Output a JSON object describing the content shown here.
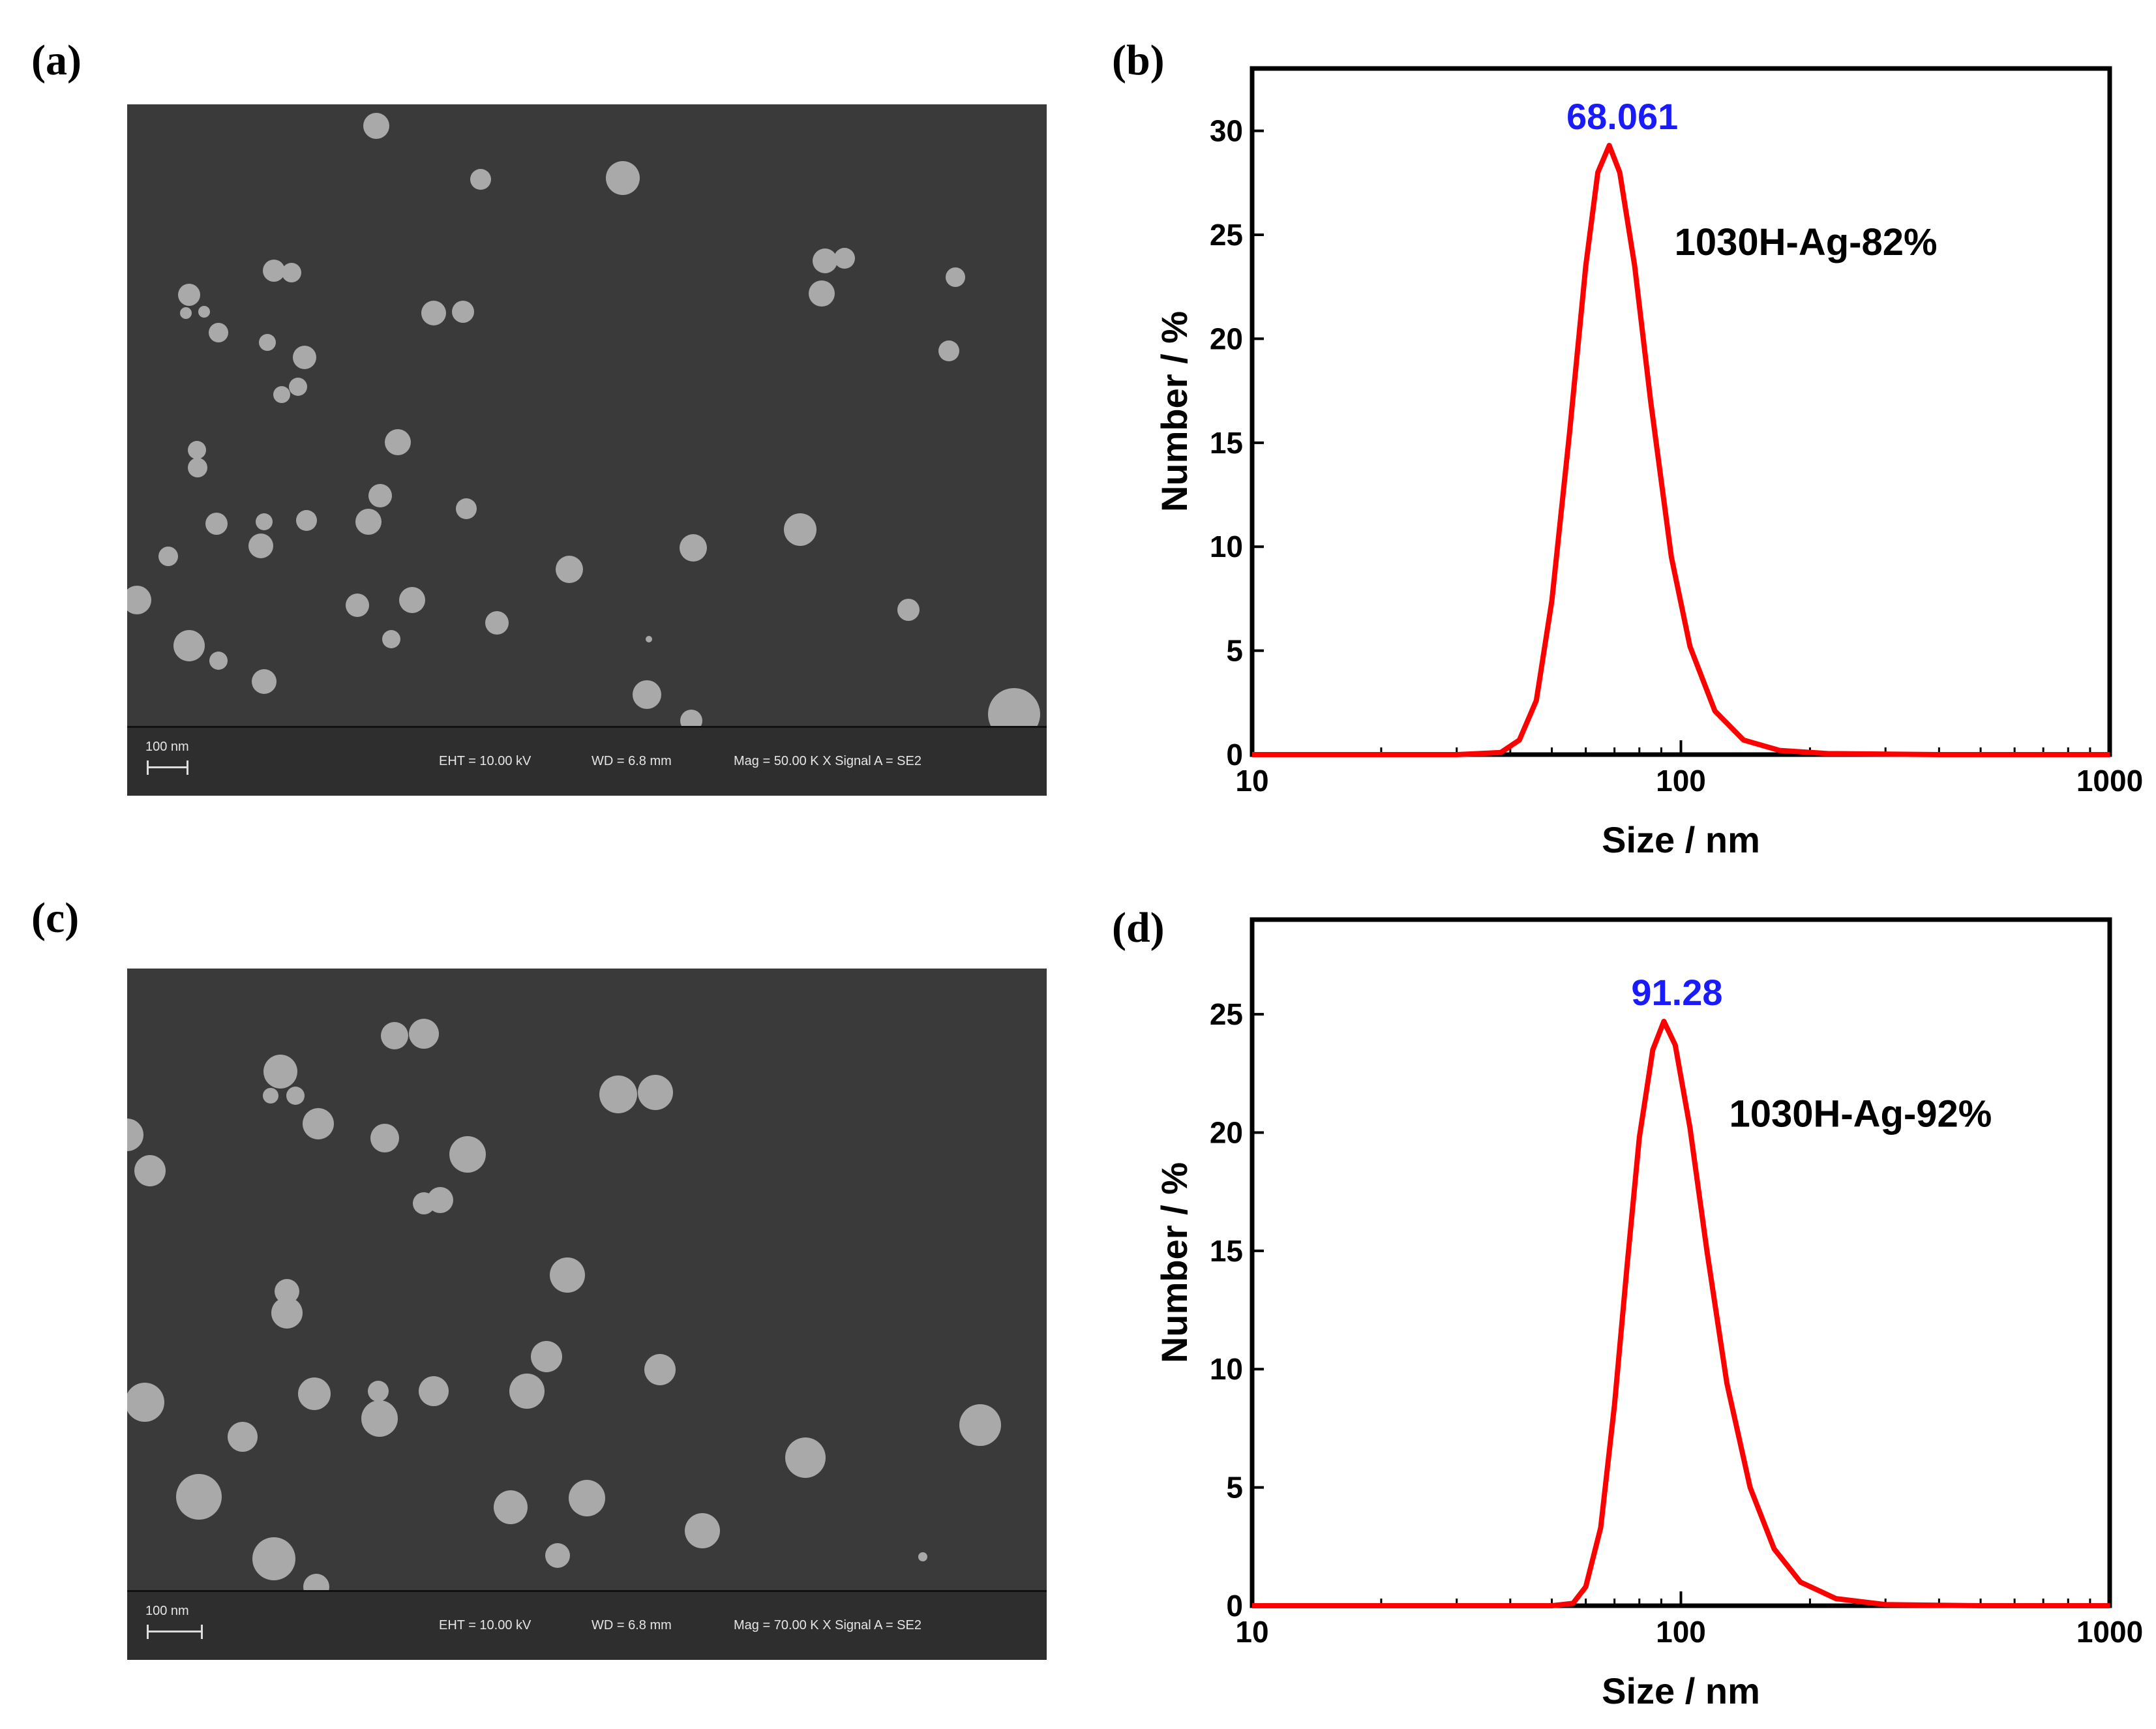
{
  "panels": {
    "a": {
      "label": "(a)",
      "scale_text": "100 nm",
      "eht": "EHT = 10.00 kV",
      "wd": "WD =  6.8 mm",
      "mag": "Mag =   50.00 K X Signal A = SE2"
    },
    "b": {
      "label": "(b)"
    },
    "c": {
      "label": "(c)",
      "scale_text": "100 nm",
      "eht": "EHT = 10.00 kV",
      "wd": "WD =  6.8 mm",
      "mag": "Mag =   70.00 K X Signal A = SE2"
    },
    "d": {
      "label": "(d)"
    }
  },
  "chart_data": [
    {
      "panel": "b",
      "type": "line",
      "xscale": "log",
      "xlim": [
        10,
        1000
      ],
      "ylim": [
        0,
        33
      ],
      "xticks": [
        10,
        100,
        1000
      ],
      "xtick_labels": [
        "10",
        "100",
        "1000"
      ],
      "yticks": [
        0,
        5,
        10,
        15,
        20,
        25,
        30
      ],
      "ytick_labels": [
        "0",
        "5",
        "10",
        "15",
        "20",
        "25",
        "30"
      ],
      "xlabel": "Size / nm",
      "ylabel": "Number / %",
      "series_label": "1030H-Ag-82%",
      "peak_label": "68.061",
      "peak_x": 68.061,
      "peak_y": 29.3,
      "x": [
        10,
        30,
        38,
        42,
        46,
        50,
        55,
        60,
        64,
        68.061,
        72,
        78,
        85,
        95,
        105,
        120,
        140,
        170,
        220,
        400,
        1000
      ],
      "y": [
        0,
        0,
        0.1,
        0.7,
        2.6,
        7.4,
        15.5,
        23.5,
        28.0,
        29.3,
        28.0,
        23.5,
        17.0,
        9.5,
        5.2,
        2.1,
        0.7,
        0.2,
        0.05,
        0,
        0
      ],
      "color": "#ff0000",
      "peak_color": "#1a1aff"
    },
    {
      "panel": "d",
      "type": "line",
      "xscale": "log",
      "xlim": [
        10,
        1000
      ],
      "ylim": [
        0,
        29
      ],
      "xticks": [
        10,
        100,
        1000
      ],
      "xtick_labels": [
        "10",
        "100",
        "1000"
      ],
      "yticks": [
        0,
        5,
        10,
        15,
        20,
        25
      ],
      "ytick_labels": [
        "0",
        "5",
        "10",
        "15",
        "20",
        "25"
      ],
      "xlabel": "Size / nm",
      "ylabel": "Number / %",
      "series_label": "1030H-Ag-92%",
      "peak_label": "91.28",
      "peak_x": 91.28,
      "peak_y": 24.7,
      "x": [
        10,
        50,
        56,
        60,
        65,
        70,
        75,
        80,
        86,
        91.28,
        97,
        105,
        115,
        128,
        145,
        165,
        190,
        230,
        300,
        500,
        1000
      ],
      "y": [
        0,
        0,
        0.1,
        0.8,
        3.3,
        8.5,
        14.5,
        19.8,
        23.5,
        24.7,
        23.7,
        20.2,
        15.0,
        9.4,
        5.0,
        2.4,
        1.0,
        0.3,
        0.05,
        0,
        0
      ],
      "color": "#ff0000",
      "peak_color": "#1a1aff"
    }
  ]
}
